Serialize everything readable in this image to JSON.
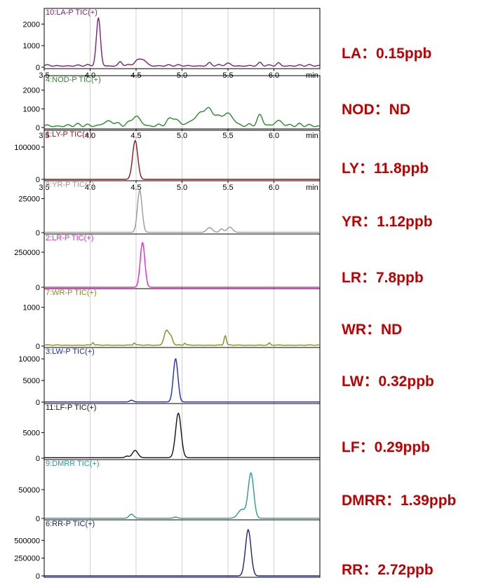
{
  "x_range": [
    3.5,
    6.5
  ],
  "x_ticks": [
    "3.5",
    "4.0",
    "4.5",
    "5.0",
    "5.5",
    "6.0"
  ],
  "x_unit": "min",
  "colors": {
    "result_text": "#c00000",
    "grid": "#d0d0d0",
    "frame": "#000000"
  },
  "chart_data": [
    {
      "type": "line",
      "label": "10:LA-P TIC(+)",
      "color": "#7b1f7b",
      "ylim": [
        0,
        2400
      ],
      "y_ticks": [
        0,
        1000,
        2000
      ],
      "y_tick_labels": [
        "0",
        "1000",
        "2000"
      ],
      "x_axis": true,
      "baseline": 50,
      "peaks": [
        [
          4.09,
          2200,
          0.022
        ],
        [
          4.33,
          180,
          0.02
        ],
        [
          4.5,
          150,
          0.03
        ],
        [
          4.57,
          300,
          0.04
        ],
        [
          5.3,
          120,
          0.02
        ],
        [
          5.5,
          100,
          0.03
        ],
        [
          5.85,
          110,
          0.02
        ],
        [
          6.05,
          140,
          0.02
        ]
      ],
      "noise": 80,
      "result": "LA：0.15ppb"
    },
    {
      "type": "line",
      "label": "4:NOD-P TIC(+)",
      "color": "#2a8a2a",
      "ylim": [
        0,
        2400
      ],
      "y_ticks": [
        0,
        1000,
        2000
      ],
      "y_tick_labels": [
        "0",
        "1000",
        "2000"
      ],
      "x_axis": true,
      "baseline": 50,
      "peaks": [
        [
          4.5,
          500,
          0.05
        ],
        [
          4.9,
          400,
          0.05
        ],
        [
          5.3,
          550,
          0.08
        ],
        [
          5.5,
          650,
          0.06
        ],
        [
          5.85,
          500,
          0.03
        ],
        [
          5.2,
          450,
          0.1
        ],
        [
          4.2,
          250,
          0.06
        ],
        [
          6.05,
          300,
          0.04
        ]
      ],
      "noise": 180,
      "result": "NOD：ND"
    },
    {
      "type": "line",
      "label": "1:LY-P TIC(+)",
      "color": "#8b1a1a",
      "ylim": [
        0,
        130000
      ],
      "y_ticks": [
        0,
        100000
      ],
      "y_tick_labels": [
        "0",
        "100000"
      ],
      "x_axis": true,
      "baseline": 0,
      "peaks": [
        [
          4.49,
          120000,
          0.028
        ]
      ],
      "noise": 0,
      "result": "LY：11.8ppb"
    },
    {
      "type": "line",
      "label": "8:YR-P TIC(+)",
      "color": "#9a9a9a",
      "ylim": [
        0,
        33000
      ],
      "y_ticks": [
        0,
        25000
      ],
      "y_tick_labels": [
        "0",
        "25000"
      ],
      "x_axis": false,
      "baseline": 200,
      "peaks": [
        [
          4.54,
          31000,
          0.025
        ],
        [
          5.3,
          3500,
          0.03
        ],
        [
          5.43,
          2500,
          0.02
        ],
        [
          5.52,
          3800,
          0.03
        ]
      ],
      "noise": 0,
      "result": "YR：1.12ppb"
    },
    {
      "type": "line",
      "label": "2:LR-P TIC(+)",
      "color": "#ee22cc",
      "ylim": [
        0,
        330000
      ],
      "y_ticks": [
        0,
        250000
      ],
      "y_tick_labels": [
        "0",
        "250000"
      ],
      "x_axis": false,
      "baseline": 0,
      "peaks": [
        [
          4.57,
          320000,
          0.025
        ]
      ],
      "noise": 0,
      "result": "LR：7.8ppb"
    },
    {
      "type": "line",
      "label": "7:WR-P TIC(+)",
      "color": "#8a8a1a",
      "ylim": [
        0,
        1300
      ],
      "y_ticks": [
        0,
        1000
      ],
      "y_tick_labels": [
        "0",
        "1000"
      ],
      "x_axis": false,
      "baseline": 20,
      "peaks": [
        [
          4.83,
          380,
          0.025
        ],
        [
          4.88,
          200,
          0.02
        ],
        [
          5.47,
          250,
          0.012
        ],
        [
          4.03,
          70,
          0.01
        ],
        [
          4.48,
          60,
          0.01
        ],
        [
          5.03,
          50,
          0.01
        ],
        [
          5.95,
          50,
          0.01
        ]
      ],
      "noise": 15,
      "result": "WR：ND"
    },
    {
      "type": "line",
      "label": "3:LW-P TIC(+)",
      "color": "#1a2acc",
      "ylim": [
        0,
        11000
      ],
      "y_ticks": [
        0,
        5000,
        10000
      ],
      "y_tick_labels": [
        "0",
        "5000",
        "10000"
      ],
      "x_axis": false,
      "baseline": 50,
      "peaks": [
        [
          4.93,
          10000,
          0.025
        ],
        [
          4.45,
          400,
          0.02
        ]
      ],
      "noise": 0,
      "result": "LW：0.32ppb"
    },
    {
      "type": "line",
      "label": "11:LF-P TIC(+)",
      "color": "#111111",
      "ylim": [
        0,
        9300
      ],
      "y_ticks": [
        0,
        5000
      ],
      "y_tick_labels": [
        "0",
        "5000"
      ],
      "x_axis": false,
      "baseline": 100,
      "peaks": [
        [
          4.96,
          8700,
          0.03
        ],
        [
          4.49,
          1400,
          0.03
        ],
        [
          4.4,
          300,
          0.02
        ]
      ],
      "noise": 0,
      "result": "LF：0.29ppb"
    },
    {
      "type": "line",
      "label": "9:DMRR TIC(+)",
      "color": "#2a9a9a",
      "ylim": [
        0,
        90000
      ],
      "y_ticks": [
        0,
        50000
      ],
      "y_tick_labels": [
        "0",
        "50000"
      ],
      "x_axis": false,
      "baseline": 400,
      "peaks": [
        [
          5.75,
          78000,
          0.03
        ],
        [
          5.65,
          15000,
          0.04
        ],
        [
          4.45,
          7000,
          0.025
        ],
        [
          4.93,
          2000,
          0.02
        ]
      ],
      "noise": 0,
      "result": "DMRR：1.39ppb"
    },
    {
      "type": "line",
      "label": "6:RR-P TIC(+)",
      "color": "#1a237e",
      "ylim": [
        0,
        690000
      ],
      "y_ticks": [
        0,
        250000,
        500000
      ],
      "y_tick_labels": [
        "0",
        "250000",
        "500000"
      ],
      "x_axis": false,
      "baseline": 0,
      "peaks": [
        [
          5.72,
          650000,
          0.03
        ]
      ],
      "noise": 0,
      "result": "RR：2.72ppb"
    }
  ]
}
